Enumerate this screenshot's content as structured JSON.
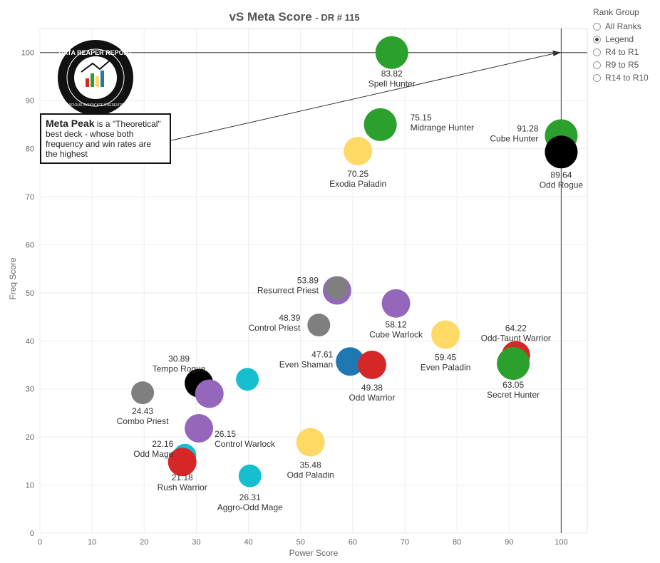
{
  "title": "vS Meta Score",
  "subtitle": "- DR # 115",
  "legend": {
    "title": "Rank Group",
    "items": [
      {
        "label": "All Ranks",
        "selected": false
      },
      {
        "label": "Legend",
        "selected": true
      },
      {
        "label": "R4 to R1",
        "selected": false
      },
      {
        "label": "R9 to R5",
        "selected": false
      },
      {
        "label": "R14 to R10",
        "selected": false
      }
    ]
  },
  "logo": {
    "text_top": "DATA REAPER REPORT",
    "text_bottom": "VICIOUS SYNDICATE PRESENTS"
  },
  "annotation": {
    "bold": "Meta Peak",
    "text": " is a \"Theoretical\" best deck - whose both frequency and win rates are the highest"
  },
  "colors": {
    "green": "#2ca02c",
    "yellow": "#ffd966",
    "purple": "#9467bd",
    "gray": "#7f7f7f",
    "black": "#000000",
    "red": "#d62728",
    "cyan": "#17becf",
    "blue": "#1f77b4"
  },
  "chart_data": {
    "type": "scatter",
    "xlabel": "Power Score",
    "ylabel": "Freq Score",
    "xlim": [
      0,
      105
    ],
    "ylim": [
      0,
      105
    ],
    "xticks": [
      0,
      10,
      20,
      30,
      40,
      50,
      60,
      70,
      80,
      90,
      100
    ],
    "yticks": [
      0,
      10,
      20,
      30,
      40,
      50,
      60,
      70,
      80,
      90,
      100
    ],
    "reference_lines": {
      "x": 100,
      "y": 100
    },
    "points": [
      {
        "name": "Spell Hunter",
        "score": "83.82",
        "x": 67.5,
        "y": 100,
        "color": "green"
      },
      {
        "name": "Midrange Hunter",
        "score": "75.15",
        "x": 65.3,
        "y": 85,
        "color": "green"
      },
      {
        "name": "Exodia Paladin",
        "score": "70.25",
        "x": 61,
        "y": 79.5,
        "color": "yellow"
      },
      {
        "name": "Cube Hunter",
        "score": "91.28",
        "x": 100,
        "y": 82.7,
        "color": "green"
      },
      {
        "name": "Odd Rogue",
        "score": "89.64",
        "x": 100,
        "y": 79.3,
        "color": "black"
      },
      {
        "name": "Resurrect Priest",
        "score": "53.89",
        "x": 57,
        "y": 50.5,
        "color": "purple"
      },
      {
        "name": "Control Priest",
        "score": "48.39",
        "x": 53.5,
        "y": 43.3,
        "color": "gray"
      },
      {
        "name": "Cube Warlock",
        "score": "58.12",
        "x": 68.3,
        "y": 47.8,
        "color": "purple"
      },
      {
        "name": "Even Paladin",
        "score": "59.45",
        "x": 77.8,
        "y": 41.3,
        "color": "yellow"
      },
      {
        "name": "Odd-Taunt Warrior",
        "score": "64.22",
        "x": 91.3,
        "y": 37,
        "color": "red"
      },
      {
        "name": "Secret Hunter",
        "score": "63.05",
        "x": 90.8,
        "y": 35.3,
        "color": "green"
      },
      {
        "name": "Even Shaman",
        "score": "47.61",
        "x": 59.5,
        "y": 35.7,
        "color": "blue"
      },
      {
        "name": "Odd Warrior",
        "score": "49.38",
        "x": 63.7,
        "y": 35,
        "color": "red"
      },
      {
        "name": "Tempo Rogue",
        "score": "30.89",
        "x": 30.5,
        "y": 31.2,
        "color": "black"
      },
      {
        "name": "Combo Priest",
        "score": "24.43",
        "x": 19.7,
        "y": 29.2,
        "color": "gray"
      },
      {
        "name": "Control Warlock",
        "score": "26.15",
        "x": 30.5,
        "y": 21.8,
        "color": "purple"
      },
      {
        "name": "Odd Mage",
        "score": "22.16",
        "x": 27.8,
        "y": 16.2,
        "color": "cyan"
      },
      {
        "name": "Rush Warrior",
        "score": "21.18",
        "x": 27.3,
        "y": 14.8,
        "color": "red"
      },
      {
        "name": "Odd Paladin",
        "score": "35.48",
        "x": 51.9,
        "y": 18.9,
        "color": "yellow"
      },
      {
        "name": "Aggro-Odd Mage",
        "score": "26.31",
        "x": 40.3,
        "y": 11.9,
        "color": "cyan"
      },
      {
        "name": "",
        "score": "",
        "x": 57,
        "y": 51,
        "color": "gray"
      },
      {
        "name": "",
        "score": "",
        "x": 39.8,
        "y": 32,
        "color": "cyan"
      },
      {
        "name": "",
        "score": "",
        "x": 32.5,
        "y": 29,
        "color": "purple"
      }
    ]
  }
}
